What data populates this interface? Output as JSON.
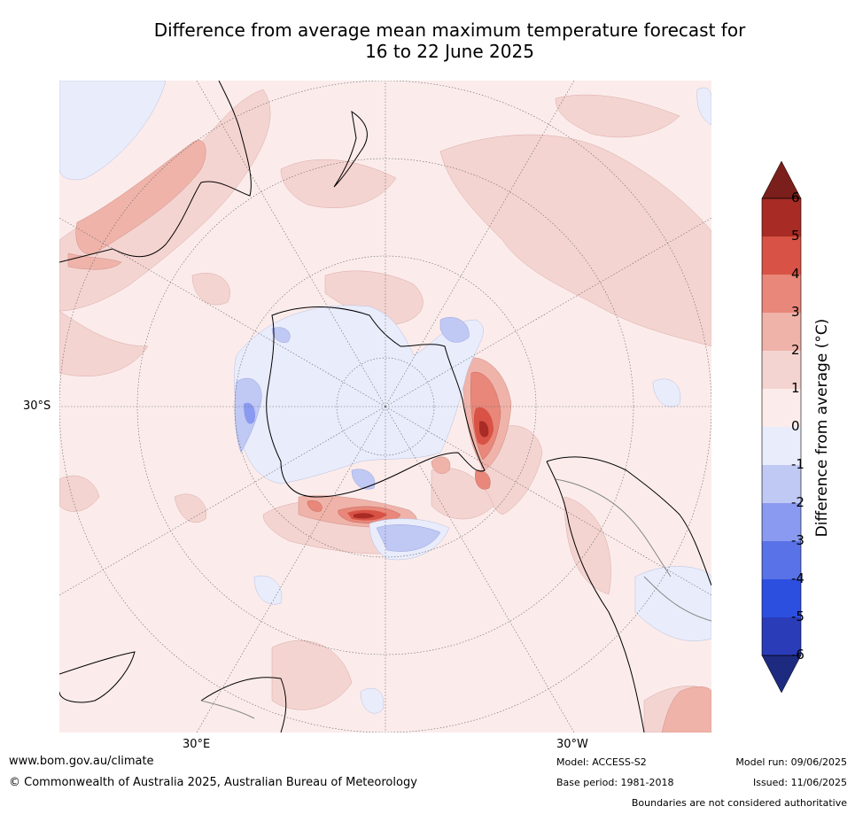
{
  "title_line1": "Difference from average mean maximum temperature forecast for",
  "title_line2": "16 to 22 June 2025",
  "map": {
    "lat_label": "30°S",
    "lon_label_east": "30°E",
    "lon_label_west": "30°W"
  },
  "colorbar": {
    "label": "Difference from average (°C)",
    "ticks": [
      "6",
      "5",
      "4",
      "3",
      "2",
      "1",
      "0",
      "-1",
      "-2",
      "-3",
      "-4",
      "-5",
      "-6"
    ],
    "colors": [
      "#a82b25",
      "#d85345",
      "#e8877a",
      "#efb3aa",
      "#f4d4d1",
      "#fbeceb",
      "#e9ecfb",
      "#c0c8f4",
      "#8a9af0",
      "#5a72e8",
      "#2d4fe0",
      "#2a3cb8"
    ],
    "over_color": "#7a1f1b",
    "under_color": "#1c2a80"
  },
  "footer": {
    "website": "www.bom.gov.au/climate",
    "copyright": "© Commonwealth of Australia 2025, Australian Bureau of Meteorology",
    "model": "Model: ACCESS-S2",
    "base_period": "Base period: 1981-2018",
    "model_run": "Model run: 09/06/2025",
    "issued": "Issued: 11/06/2025",
    "disclaimer": "Boundaries are not considered authoritative"
  }
}
